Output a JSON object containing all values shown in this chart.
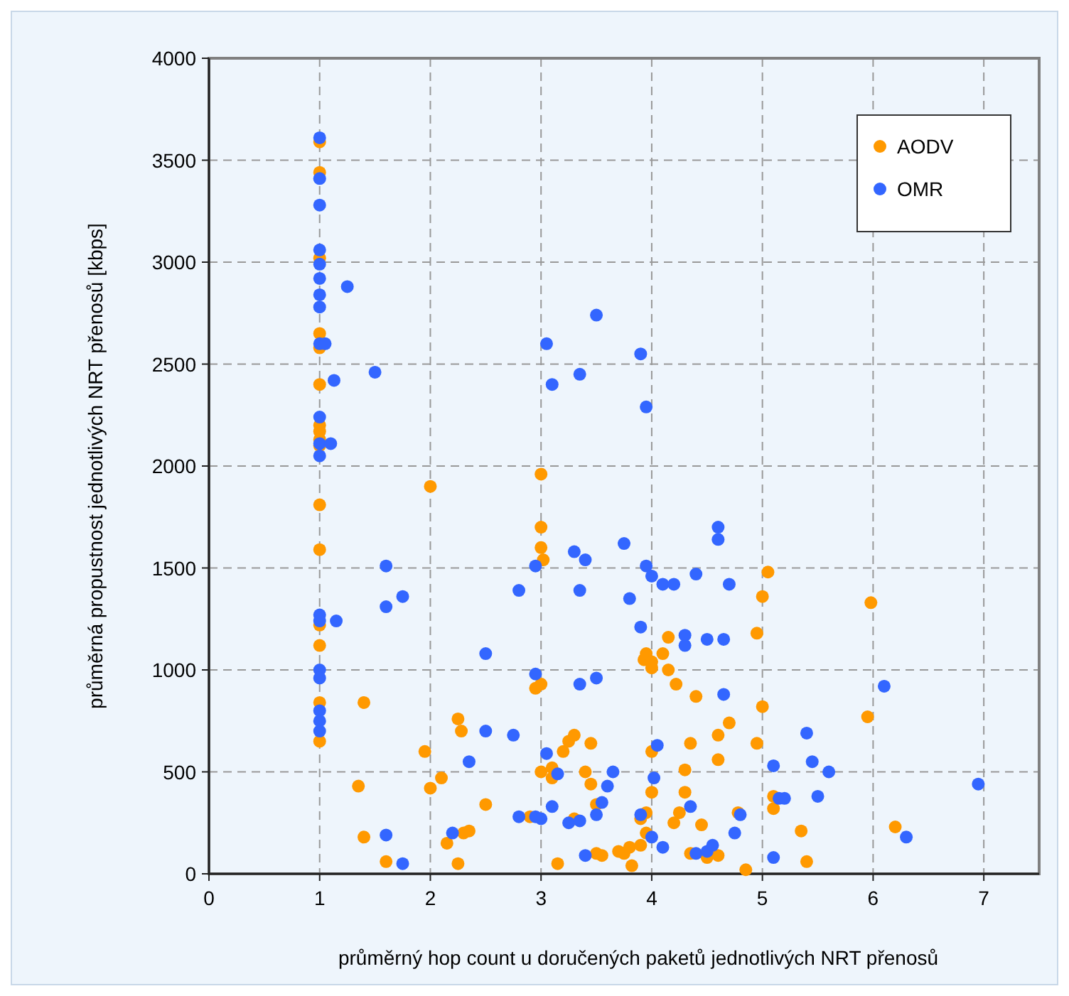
{
  "chart_data": {
    "type": "scatter",
    "xlabel": "průměrný hop count u doručených paketů jednotlivých NRT přenosů",
    "ylabel": "průměrná propustnost jednotlivých NRT přenosů [kbps]",
    "xlim": [
      0,
      7.5
    ],
    "ylim": [
      0,
      4000
    ],
    "xticks": [
      0,
      1,
      2,
      3,
      4,
      5,
      6,
      7
    ],
    "yticks": [
      0,
      500,
      1000,
      1500,
      2000,
      2500,
      3000,
      3500,
      4000
    ],
    "grid": true,
    "legend": "top right",
    "marker": "circle",
    "series": [
      {
        "name": "AODV",
        "color": "#ff9900",
        "x": [
          1,
          1,
          1,
          1,
          1,
          1,
          1,
          1,
          1,
          1,
          1,
          1,
          1,
          1,
          1,
          1,
          1.4,
          1.35,
          1.4,
          1.6,
          1.95,
          2,
          2,
          2.1,
          2.15,
          2.25,
          2.28,
          2.25,
          2.3,
          2.35,
          2.5,
          2.9,
          2.95,
          3,
          3,
          3,
          3,
          3.02,
          3,
          3.1,
          3.1,
          3.15,
          3.2,
          3.25,
          3.3,
          3.4,
          3.45,
          3.5,
          3.45,
          3.3,
          3.5,
          3.55,
          3.7,
          3.75,
          3.8,
          3.82,
          3.9,
          3.9,
          3.95,
          3.95,
          3.93,
          3.95,
          4,
          4,
          4,
          4,
          4.1,
          4.15,
          4.15,
          4.22,
          4.2,
          4.25,
          4.3,
          4.3,
          4.35,
          4.4,
          4.45,
          4.5,
          4.6,
          4.6,
          4.7,
          4.78,
          4.85,
          4.95,
          4.95,
          5,
          5,
          5.05,
          5.1,
          5.1,
          5.35,
          5.4,
          5.95,
          5.98,
          6.2,
          4.6,
          4.35
        ],
        "values": [
          3590,
          3440,
          3020,
          2650,
          2580,
          2400,
          2200,
          2170,
          2130,
          2100,
          1810,
          1590,
          1220,
          1120,
          840,
          650,
          840,
          430,
          180,
          60,
          600,
          420,
          1900,
          470,
          150,
          760,
          700,
          50,
          200,
          210,
          340,
          280,
          910,
          930,
          1960,
          1700,
          1600,
          1540,
          500,
          520,
          470,
          50,
          600,
          650,
          680,
          500,
          440,
          340,
          640,
          270,
          100,
          90,
          110,
          100,
          130,
          40,
          140,
          270,
          300,
          200,
          1050,
          1080,
          1010,
          1040,
          600,
          400,
          1080,
          1160,
          1000,
          930,
          250,
          300,
          510,
          400,
          640,
          870,
          240,
          80,
          680,
          560,
          740,
          300,
          20,
          640,
          1180,
          820,
          1360,
          1480,
          380,
          320,
          210,
          60,
          770,
          1330,
          230,
          90,
          100
        ]
      },
      {
        "name": "OMR",
        "color": "#3366ff",
        "x": [
          1,
          1,
          1,
          1,
          1,
          1,
          1,
          1,
          1,
          1,
          1,
          1,
          1,
          1,
          1,
          1,
          1,
          1,
          1,
          1.05,
          1.1,
          1.13,
          1.25,
          1.5,
          1.15,
          1.6,
          1.6,
          1.75,
          1.6,
          1.75,
          2.2,
          2.35,
          2.5,
          2.5,
          2.75,
          2.8,
          2.8,
          2.95,
          2.95,
          2.95,
          3.05,
          3.1,
          3.35,
          3.5,
          3.3,
          3.4,
          3.35,
          3.35,
          3.5,
          3.05,
          3.1,
          3.15,
          3.25,
          3,
          3.35,
          3.5,
          3.6,
          3.65,
          3.55,
          3.4,
          3.75,
          3.8,
          3.9,
          3.95,
          3.95,
          4,
          4.1,
          4.2,
          3.9,
          4.05,
          4.02,
          4,
          4.1,
          3.9,
          4.3,
          4.3,
          4.4,
          4.5,
          4.6,
          4.6,
          4.65,
          4.7,
          4.65,
          4.35,
          4.4,
          4.5,
          4.55,
          4.75,
          4.8,
          5.1,
          5.1,
          5.15,
          5.2,
          5.4,
          5.45,
          5.5,
          5.6,
          6.1,
          6.3,
          6.95
        ],
        "values": [
          3610,
          3410,
          3280,
          3060,
          2990,
          2920,
          2840,
          2780,
          2600,
          2240,
          2110,
          2050,
          1270,
          1240,
          1000,
          800,
          750,
          700,
          960,
          2600,
          2110,
          2420,
          2880,
          2460,
          1240,
          1510,
          1310,
          1360,
          190,
          50,
          200,
          550,
          1080,
          700,
          680,
          1390,
          280,
          1510,
          980,
          280,
          2600,
          2400,
          2450,
          2740,
          1580,
          1540,
          1390,
          930,
          960,
          590,
          330,
          490,
          250,
          270,
          260,
          290,
          430,
          500,
          350,
          90,
          1620,
          1350,
          2550,
          2290,
          1510,
          1460,
          1420,
          1420,
          1210,
          630,
          470,
          180,
          130,
          290,
          1170,
          1120,
          1470,
          1150,
          1640,
          1700,
          1150,
          1420,
          880,
          330,
          100,
          110,
          140,
          200,
          290,
          530,
          80,
          370,
          370,
          690,
          550,
          380,
          500,
          920,
          180,
          440
        ]
      }
    ]
  }
}
